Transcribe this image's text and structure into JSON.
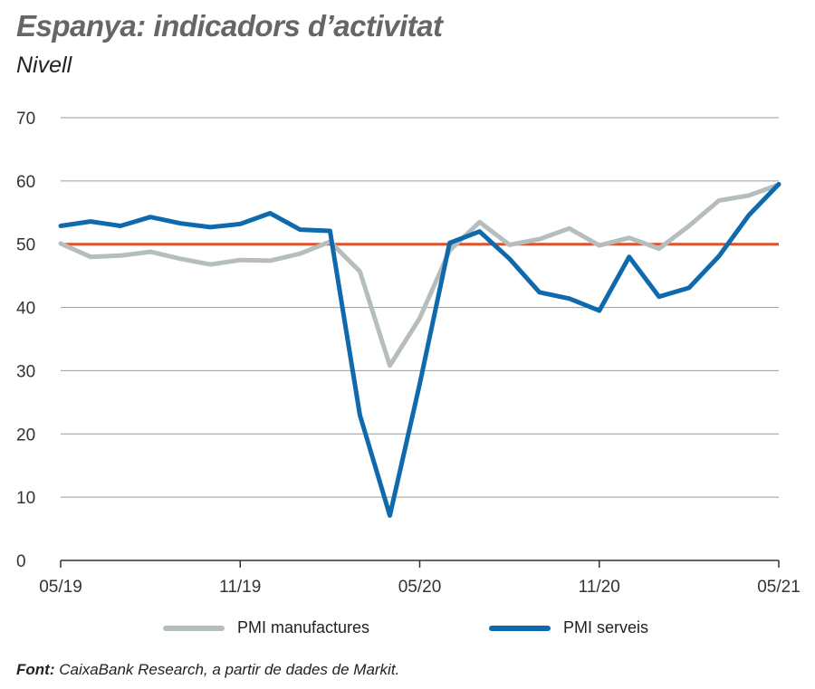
{
  "title": "Espanya: indicadors d’activitat",
  "subtitle": "Nivell",
  "source": {
    "label": "Font:",
    "text": " CaixaBank Research, a partir de dades de Markit."
  },
  "chart_data": {
    "type": "line",
    "x": [
      "05/19",
      "06/19",
      "07/19",
      "08/19",
      "09/19",
      "10/19",
      "11/19",
      "12/19",
      "01/20",
      "02/20",
      "03/20",
      "04/20",
      "05/20",
      "06/20",
      "07/20",
      "08/20",
      "09/20",
      "10/20",
      "11/20",
      "12/20",
      "01/21",
      "02/21",
      "03/21",
      "04/21",
      "05/21"
    ],
    "x_ticks": [
      "05/19",
      "11/19",
      "05/20",
      "11/20",
      "05/21"
    ],
    "y_ticks": [
      0,
      10,
      20,
      30,
      40,
      50,
      60,
      70
    ],
    "ylim": [
      0,
      70
    ],
    "reference_line": {
      "value": 50,
      "color": "#e0502a"
    },
    "grid": true,
    "legend_position": "bottom",
    "series": [
      {
        "name": "PMI manufactures",
        "color": "#b5bdbf",
        "values": [
          50.1,
          48.0,
          48.2,
          48.8,
          47.7,
          46.8,
          47.5,
          47.4,
          48.5,
          50.4,
          45.7,
          30.8,
          38.3,
          49.0,
          53.5,
          49.9,
          50.8,
          52.5,
          49.8,
          51.0,
          49.3,
          52.9,
          56.9,
          57.7,
          59.4
        ]
      },
      {
        "name": "PMI serveis",
        "color": "#0e6aad",
        "values": [
          52.9,
          53.6,
          52.9,
          54.3,
          53.3,
          52.7,
          53.2,
          54.9,
          52.3,
          52.1,
          23.0,
          7.1,
          27.9,
          50.2,
          52.0,
          47.7,
          42.4,
          41.4,
          39.5,
          48.0,
          41.7,
          43.1,
          48.1,
          54.6,
          59.5
        ]
      }
    ]
  }
}
